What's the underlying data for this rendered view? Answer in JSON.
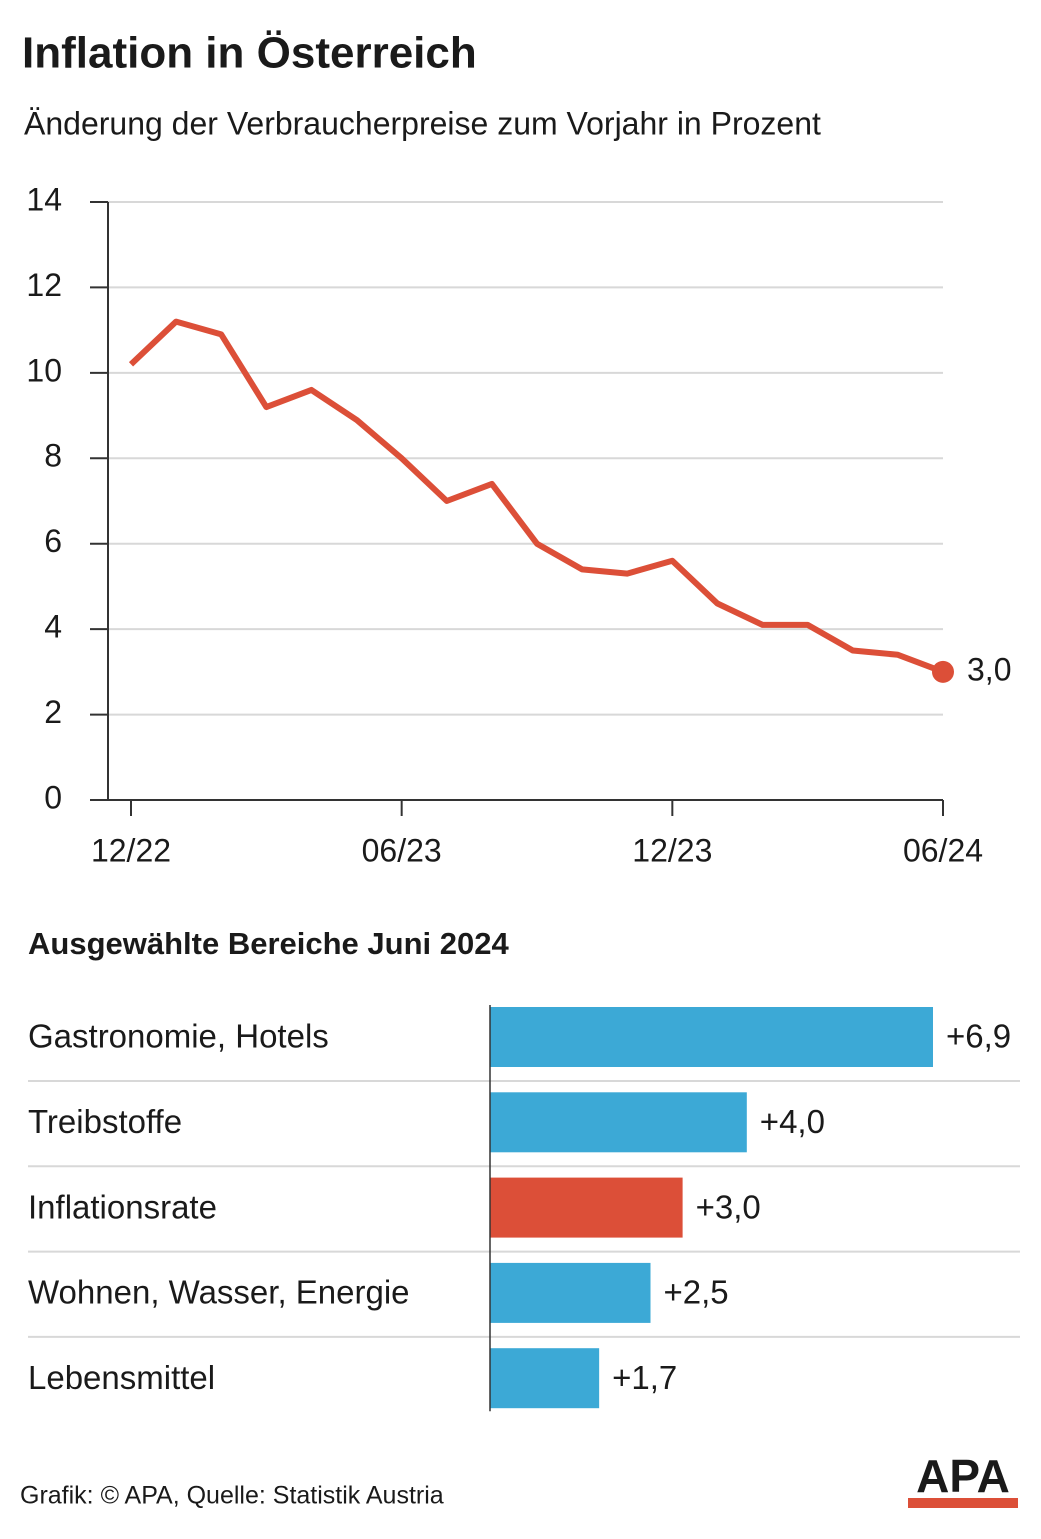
{
  "chart_data": [
    {
      "type": "line",
      "title": "Inflation in Österreich",
      "subtitle": "Änderung der Verbraucherpreise zum Vorjahr in Prozent",
      "categories": [
        "12/22",
        null,
        null,
        null,
        null,
        null,
        "06/23",
        null,
        null,
        null,
        null,
        null,
        "12/23",
        null,
        null,
        null,
        null,
        null,
        "06/24"
      ],
      "values": [
        10.2,
        11.2,
        10.9,
        9.2,
        9.6,
        8.9,
        8.0,
        7.0,
        7.4,
        6.0,
        5.4,
        5.3,
        5.6,
        4.6,
        4.1,
        4.1,
        3.5,
        3.4,
        3.0
      ],
      "value_labels": [
        null,
        null,
        null,
        null,
        null,
        null,
        null,
        null,
        null,
        null,
        null,
        null,
        null,
        null,
        null,
        null,
        null,
        null,
        "3,0"
      ],
      "color": "#dc4f38",
      "ylim": [
        0,
        14
      ],
      "yticks": [
        0,
        2,
        4,
        6,
        8,
        10,
        12,
        14
      ],
      "grid": true
    },
    {
      "type": "hbar",
      "title": "Ausgewählte Bereiche Juni 2024",
      "categories": [
        "Gastronomie, Hotels",
        "Treibstoffe",
        "Inflationsrate",
        "Wohnen, Wasser, Energie",
        "Lebensmittel"
      ],
      "values": [
        6.9,
        4.0,
        3.0,
        2.5,
        1.7
      ],
      "value_labels": [
        "+6,9",
        "+4,0",
        "+3,0",
        "+2,5",
        "+1,7"
      ],
      "colors": [
        "#3ca9d6",
        "#3ca9d6",
        "#dc4f38",
        "#3ca9d6",
        "#3ca9d6"
      ]
    }
  ],
  "source": "Grafik: © APA, Quelle: Statistik Austria",
  "logo": "APA"
}
